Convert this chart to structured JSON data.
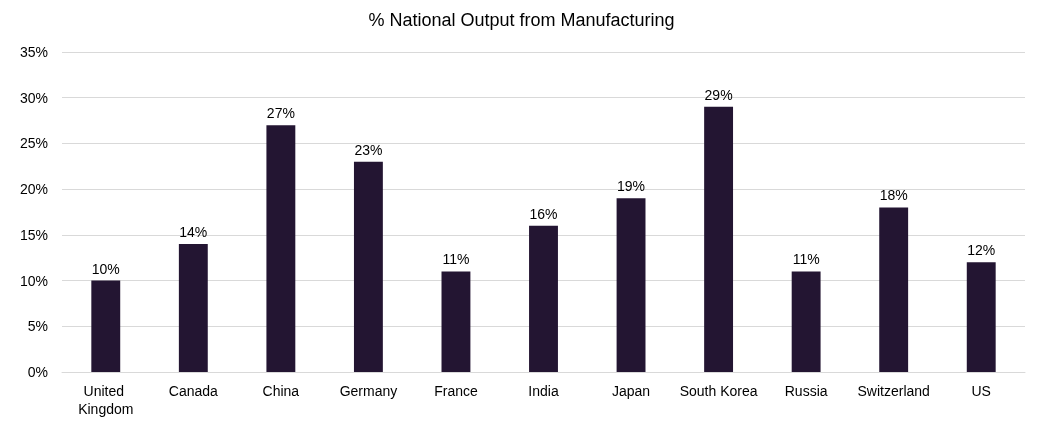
{
  "chart_data": {
    "type": "bar",
    "title": "% National Output from Manufacturing",
    "categories": [
      "United Kingdom",
      "Canada",
      "China",
      "Germany",
      "France",
      "India",
      "Japan",
      "South Korea",
      "Russia",
      "Switzerland",
      "US"
    ],
    "values": [
      10,
      14,
      27,
      23,
      11,
      16,
      19,
      29,
      11,
      18,
      12
    ],
    "value_labels": [
      "10%",
      "14%",
      "27%",
      "23%",
      "11%",
      "16%",
      "19%",
      "29%",
      "11%",
      "18%",
      "12%"
    ],
    "color": "#231532",
    "ylim": [
      0,
      35
    ],
    "yticks": [
      {
        "value": 0,
        "label": "0%"
      },
      {
        "value": 5,
        "label": "5%"
      },
      {
        "value": 10,
        "label": "10%"
      },
      {
        "value": 15,
        "label": "15%"
      },
      {
        "value": 20,
        "label": "20%"
      },
      {
        "value": 25,
        "label": "25%"
      },
      {
        "value": 30,
        "label": "30%"
      },
      {
        "value": 35,
        "label": "35%"
      }
    ],
    "grid": "y"
  }
}
